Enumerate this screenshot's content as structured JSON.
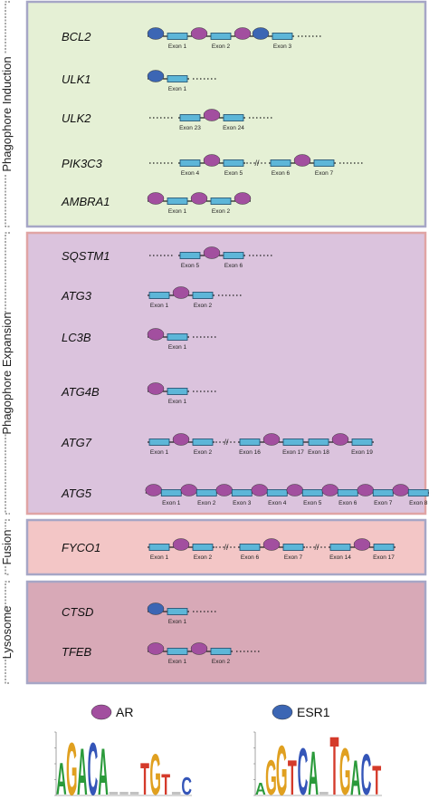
{
  "stages": [
    {
      "label": "Phagophore Induction",
      "fill": "#e5f0d5",
      "border": "#a6a6c6",
      "genes": [
        {
          "name": "BCL2",
          "segments": [
            [
              {
                "type": "ESR1"
              },
              {
                "type": "exon",
                "label": "Exon 1"
              },
              {
                "type": "AR"
              },
              {
                "type": "exon",
                "label": "Exon 2"
              },
              {
                "type": "AR"
              },
              {
                "type": "ESR1"
              },
              {
                "type": "exon",
                "label": "Exon 3"
              },
              {
                "type": "dots"
              }
            ]
          ]
        },
        {
          "name": "ULK1",
          "segments": [
            [
              {
                "type": "ESR1"
              },
              {
                "type": "exon",
                "label": "Exon 1"
              },
              {
                "type": "dots"
              }
            ]
          ]
        },
        {
          "name": "ULK2",
          "segments": [
            [
              {
                "type": "dots"
              },
              {
                "type": "exon",
                "label": "Exon 23"
              },
              {
                "type": "AR"
              },
              {
                "type": "exon",
                "label": "Exon 24"
              },
              {
                "type": "dots"
              }
            ]
          ]
        },
        {
          "name": "PIK3C3",
          "segments": [
            [
              {
                "type": "dots"
              },
              {
                "type": "exon",
                "label": "Exon 4"
              },
              {
                "type": "AR"
              },
              {
                "type": "exon",
                "label": "Exon 5"
              }
            ],
            [
              {
                "type": "exon",
                "label": "Exon 6"
              },
              {
                "type": "AR"
              },
              {
                "type": "exon",
                "label": "Exon 7"
              },
              {
                "type": "dots"
              }
            ]
          ]
        },
        {
          "name": "AMBRA1",
          "segments": [
            [
              {
                "type": "AR"
              },
              {
                "type": "exon",
                "label": "Exon 1"
              },
              {
                "type": "AR"
              },
              {
                "type": "exon",
                "label": "Exon 2"
              },
              {
                "type": "AR"
              }
            ]
          ]
        }
      ]
    },
    {
      "label": "Phagophore Expansion",
      "fill": "#dbc3dd",
      "border": "#e0a4a4",
      "genes": [
        {
          "name": "SQSTM1",
          "segments": [
            [
              {
                "type": "dots"
              },
              {
                "type": "exon",
                "label": "Exon 5"
              },
              {
                "type": "AR"
              },
              {
                "type": "exon",
                "label": "Exon 6"
              },
              {
                "type": "dots"
              }
            ]
          ]
        },
        {
          "name": "ATG3",
          "segments": [
            [
              {
                "type": "exon",
                "label": "Exon 1"
              },
              {
                "type": "AR"
              },
              {
                "type": "exon",
                "label": "Exon 2"
              },
              {
                "type": "dots"
              }
            ]
          ]
        },
        {
          "name": "LC3B",
          "segments": [
            [
              {
                "type": "AR"
              },
              {
                "type": "exon",
                "label": "Exon 1"
              },
              {
                "type": "dots"
              }
            ]
          ]
        },
        {
          "name": "ATG4B",
          "segments": [
            [
              {
                "type": "AR"
              },
              {
                "type": "exon",
                "label": "Exon 1"
              },
              {
                "type": "dots"
              }
            ]
          ]
        },
        {
          "name": "ATG7",
          "segments": [
            [
              {
                "type": "exon",
                "label": "Exon 1"
              },
              {
                "type": "AR"
              },
              {
                "type": "exon",
                "label": "Exon 2"
              }
            ],
            [
              {
                "type": "exon",
                "label": "Exon 16"
              },
              {
                "type": "AR"
              },
              {
                "type": "exon",
                "label": "Exon 17"
              },
              {
                "type": "exon",
                "label": "Exon 18"
              },
              {
                "type": "AR"
              },
              {
                "type": "exon",
                "label": "Exon 19"
              }
            ]
          ]
        },
        {
          "name": "ATG5",
          "segments": [
            [
              {
                "type": "AR"
              },
              {
                "type": "exon",
                "label": "Exon 1"
              },
              {
                "type": "AR"
              },
              {
                "type": "exon",
                "label": "Exon 2"
              },
              {
                "type": "AR"
              },
              {
                "type": "exon",
                "label": "Exon 3"
              },
              {
                "type": "AR"
              },
              {
                "type": "exon",
                "label": "Exon 4"
              },
              {
                "type": "AR"
              },
              {
                "type": "exon",
                "label": "Exon 5"
              },
              {
                "type": "AR"
              },
              {
                "type": "exon",
                "label": "Exon 6"
              },
              {
                "type": "AR"
              },
              {
                "type": "exon",
                "label": "Exon 7"
              },
              {
                "type": "AR"
              },
              {
                "type": "exon",
                "label": "Exon 8"
              }
            ]
          ]
        }
      ]
    },
    {
      "label": "Fusion",
      "fill": "#f3c6c6",
      "border": "#a6a6c6",
      "genes": [
        {
          "name": "FYCO1",
          "segments": [
            [
              {
                "type": "exon",
                "label": "Exon 1"
              },
              {
                "type": "AR"
              },
              {
                "type": "exon",
                "label": "Exon 2"
              }
            ],
            [
              {
                "type": "exon",
                "label": "Exon 6"
              },
              {
                "type": "AR"
              },
              {
                "type": "exon",
                "label": "Exon 7"
              }
            ],
            [
              {
                "type": "exon",
                "label": "Exon 14"
              },
              {
                "type": "AR"
              },
              {
                "type": "exon",
                "label": "Exon 17"
              }
            ]
          ]
        }
      ]
    },
    {
      "label": "Lysosome",
      "fill": "#d8a9b7",
      "border": "#a6a6c6",
      "genes": [
        {
          "name": "CTSD",
          "segments": [
            [
              {
                "type": "ESR1"
              },
              {
                "type": "exon",
                "label": "Exon 1"
              },
              {
                "type": "dots"
              }
            ]
          ]
        },
        {
          "name": "TFEB",
          "segments": [
            [
              {
                "type": "AR"
              },
              {
                "type": "exon",
                "label": "Exon 1"
              },
              {
                "type": "AR"
              },
              {
                "type": "exon",
                "label": "Exon 2"
              },
              {
                "type": "dots"
              }
            ]
          ]
        }
      ]
    }
  ],
  "legend": [
    {
      "label": "AR",
      "color": "#a24f9f"
    },
    {
      "label": "ESR1",
      "color": "#3c66b4"
    }
  ],
  "motifs": [
    {
      "name": "AR",
      "letters": [
        {
          "char": "A",
          "color": "#2a9a3a",
          "h": 0.55
        },
        {
          "char": "G",
          "color": "#e0a020",
          "h": 0.9
        },
        {
          "char": "A",
          "color": "#2a9a3a",
          "h": 0.8
        },
        {
          "char": "C",
          "color": "#3455b8",
          "h": 0.9
        },
        {
          "char": "A",
          "color": "#2a9a3a",
          "h": 0.8
        },
        {
          "char": "",
          "color": "#999999",
          "h": 0.05
        },
        {
          "char": "",
          "color": "#999999",
          "h": 0.05
        },
        {
          "char": "",
          "color": "#999999",
          "h": 0.05
        },
        {
          "char": "T",
          "color": "#d43a2a",
          "h": 0.55
        },
        {
          "char": "G",
          "color": "#e0a020",
          "h": 0.7
        },
        {
          "char": "T",
          "color": "#d43a2a",
          "h": 0.35
        },
        {
          "char": "",
          "color": "#999999",
          "h": 0.05
        },
        {
          "char": "C",
          "color": "#3455b8",
          "h": 0.3
        }
      ]
    },
    {
      "name": "ESR1",
      "letters": [
        {
          "char": "A",
          "color": "#2a9a3a",
          "h": 0.2
        },
        {
          "char": "G",
          "color": "#e0a020",
          "h": 0.6
        },
        {
          "char": "G",
          "color": "#e0a020",
          "h": 0.85
        },
        {
          "char": "T",
          "color": "#d43a2a",
          "h": 0.6
        },
        {
          "char": "C",
          "color": "#3455b8",
          "h": 0.8
        },
        {
          "char": "A",
          "color": "#2a9a3a",
          "h": 0.75
        },
        {
          "char": "",
          "color": "#999999",
          "h": 0.05
        },
        {
          "char": "T",
          "color": "#d43a2a",
          "h": 1.0
        },
        {
          "char": "G",
          "color": "#e0a020",
          "h": 0.8
        },
        {
          "char": "A",
          "color": "#2a9a3a",
          "h": 0.6
        },
        {
          "char": "C",
          "color": "#3455b8",
          "h": 0.7
        },
        {
          "char": "T",
          "color": "#d43a2a",
          "h": 0.5
        }
      ]
    }
  ]
}
